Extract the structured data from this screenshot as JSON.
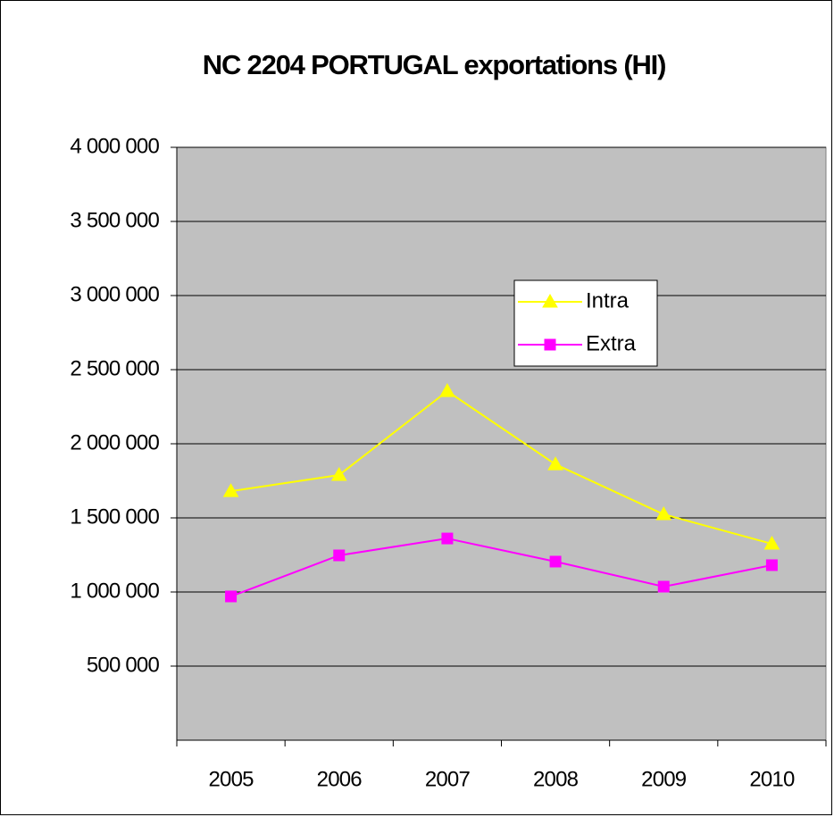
{
  "chart_data": {
    "type": "line",
    "title": "NC 2204 PORTUGAL exportations  (HI)",
    "categories": [
      "2005",
      "2006",
      "2007",
      "2008",
      "2009",
      "2010"
    ],
    "series": [
      {
        "name": "Intra",
        "color": "#ffff00",
        "marker": "triangle",
        "values": [
          1680000,
          1789000,
          2355000,
          1861000,
          1524000,
          1325000
        ]
      },
      {
        "name": "Extra",
        "color": "#ff00ff",
        "marker": "square",
        "values": [
          970000,
          1247000,
          1361000,
          1205000,
          1036000,
          1181000
        ]
      }
    ],
    "ylim": [
      0,
      4000000
    ],
    "yticks": [
      {
        "value": 500000,
        "label": "500 000"
      },
      {
        "value": 1000000,
        "label": "1 000 000"
      },
      {
        "value": 1500000,
        "label": "1 500 000"
      },
      {
        "value": 2000000,
        "label": "2 000 000"
      },
      {
        "value": 2500000,
        "label": "2 500 000"
      },
      {
        "value": 3000000,
        "label": "3 000 000"
      },
      {
        "value": 3500000,
        "label": "3 500 000"
      },
      {
        "value": 4000000,
        "label": "4 000 000"
      }
    ],
    "grid": true,
    "plot_background": "#c0c0c0"
  }
}
